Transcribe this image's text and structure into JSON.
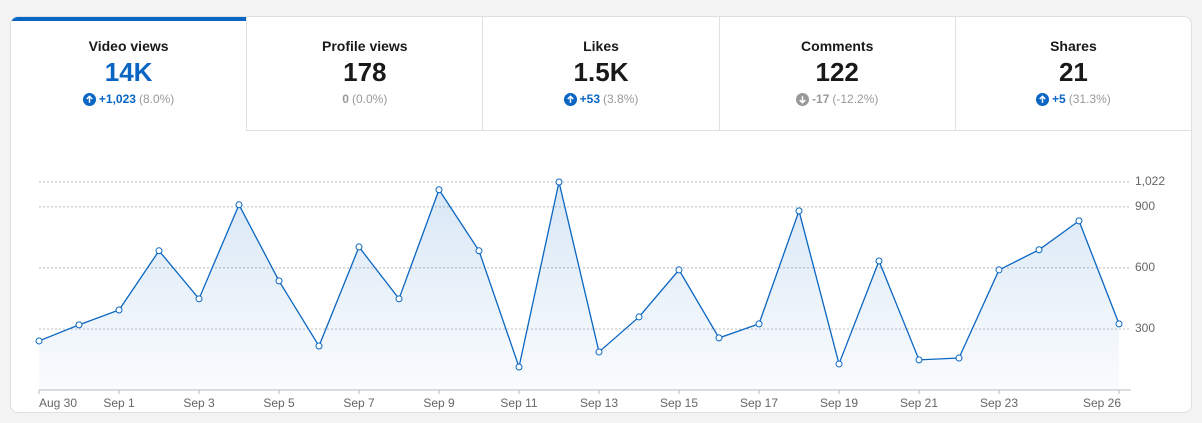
{
  "tabs": [
    {
      "label": "Video views",
      "value": "14K",
      "change": "+1,023",
      "change_pct": "(8.0%)",
      "direction": "up",
      "selected": true
    },
    {
      "label": "Profile views",
      "value": "178",
      "change": "0",
      "change_pct": "(0.0%)",
      "direction": "none",
      "selected": false
    },
    {
      "label": "Likes",
      "value": "1.5K",
      "change": "+53",
      "change_pct": "(3.8%)",
      "direction": "up",
      "selected": false
    },
    {
      "label": "Comments",
      "value": "122",
      "change": "-17",
      "change_pct": "(-12.2%)",
      "direction": "down",
      "selected": false
    },
    {
      "label": "Shares",
      "value": "21",
      "change": "+5",
      "change_pct": "(31.3%)",
      "direction": "up",
      "selected": false
    }
  ],
  "chart_data": {
    "type": "area",
    "color": "#0a66c2",
    "categories": [
      "Aug 30",
      null,
      "Sep 1",
      null,
      "Sep 3",
      null,
      "Sep 5",
      null,
      "Sep 7",
      null,
      "Sep 9",
      null,
      "Sep 11",
      null,
      "Sep 13",
      null,
      "Sep 15",
      null,
      "Sep 17",
      null,
      "Sep 19",
      null,
      "Sep 21",
      null,
      "Sep 23",
      null,
      null,
      "Sep 26"
    ],
    "values": [
      241,
      320,
      393,
      684,
      448,
      910,
      536,
      216,
      703,
      448,
      984,
      684,
      113,
      1022,
      187,
      359,
      590,
      256,
      325,
      880,
      128,
      634,
      148,
      157,
      590,
      689,
      831,
      325
    ],
    "ylim": [
      0,
      1022
    ],
    "yticks": [
      300,
      600,
      900,
      {
        "value": 1022,
        "label": "1,022"
      }
    ],
    "grid": true
  }
}
